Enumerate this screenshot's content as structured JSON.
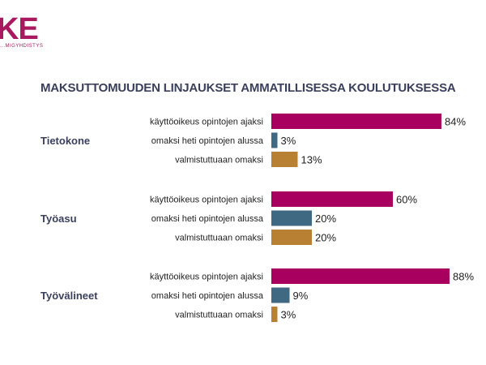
{
  "logo": {
    "mark": "KE",
    "subtitle": "...MIGYHDISTYS",
    "color": "#a8195f"
  },
  "colors": {
    "bar1": "#a8005e",
    "bar2": "#3f6882",
    "bar3": "#b88033",
    "category_text": "#3a3f5c",
    "label_text": "#222222"
  },
  "chart_data": {
    "type": "bar",
    "orientation": "horizontal",
    "title": "MAKSUTTOMUUDEN LINJAUKSET AMMATILLISESSA KOULUTUKSESSA",
    "value_suffix": "%",
    "xlim": [
      0,
      100
    ],
    "groups": [
      {
        "name": "Tietokone",
        "bars": [
          {
            "label": "käyttöoikeus opintojen ajaksi",
            "value": 84
          },
          {
            "label": "omaksi heti opintojen alussa",
            "value": 3
          },
          {
            "label": "valmistuttuaan omaksi",
            "value": 13
          }
        ]
      },
      {
        "name": "Työasu",
        "bars": [
          {
            "label": "käyttöoikeus opintojen ajaksi",
            "value": 60
          },
          {
            "label": "omaksi heti opintojen alussa",
            "value": 20
          },
          {
            "label": "valmistuttuaan omaksi",
            "value": 20
          }
        ]
      },
      {
        "name": "Työvälineet",
        "bars": [
          {
            "label": "käyttöoikeus opintojen ajaksi",
            "value": 88
          },
          {
            "label": "omaksi heti opintojen alussa",
            "value": 9
          },
          {
            "label": "valmistuttuaan omaksi",
            "value": 3
          }
        ]
      }
    ]
  }
}
